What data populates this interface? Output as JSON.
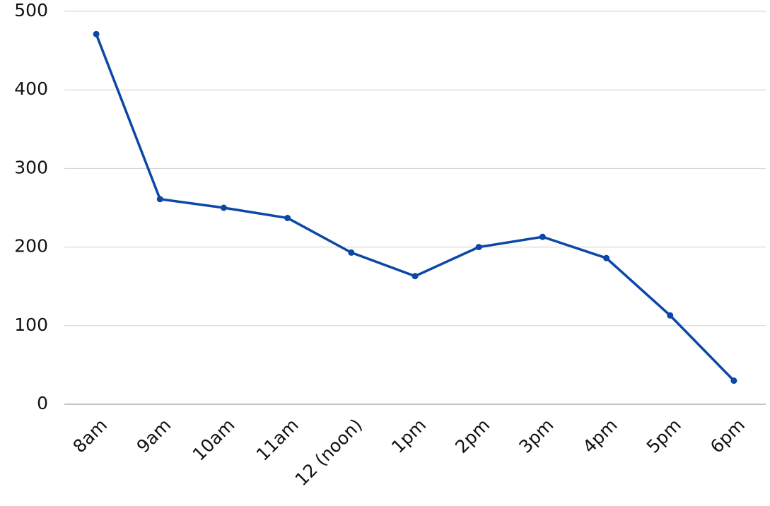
{
  "chart_data": {
    "type": "line",
    "categories": [
      "8am",
      "9am",
      "10am",
      "11am",
      "12 (noon)",
      "1pm",
      "2pm",
      "3pm",
      "4pm",
      "5pm",
      "6pm"
    ],
    "values": [
      471,
      261,
      250,
      237,
      193,
      163,
      200,
      213,
      186,
      113,
      30
    ],
    "color": "#0b47a6",
    "ylim": [
      0,
      500
    ],
    "yticks": [
      0,
      100,
      200,
      300,
      400,
      500
    ],
    "grid": true
  }
}
